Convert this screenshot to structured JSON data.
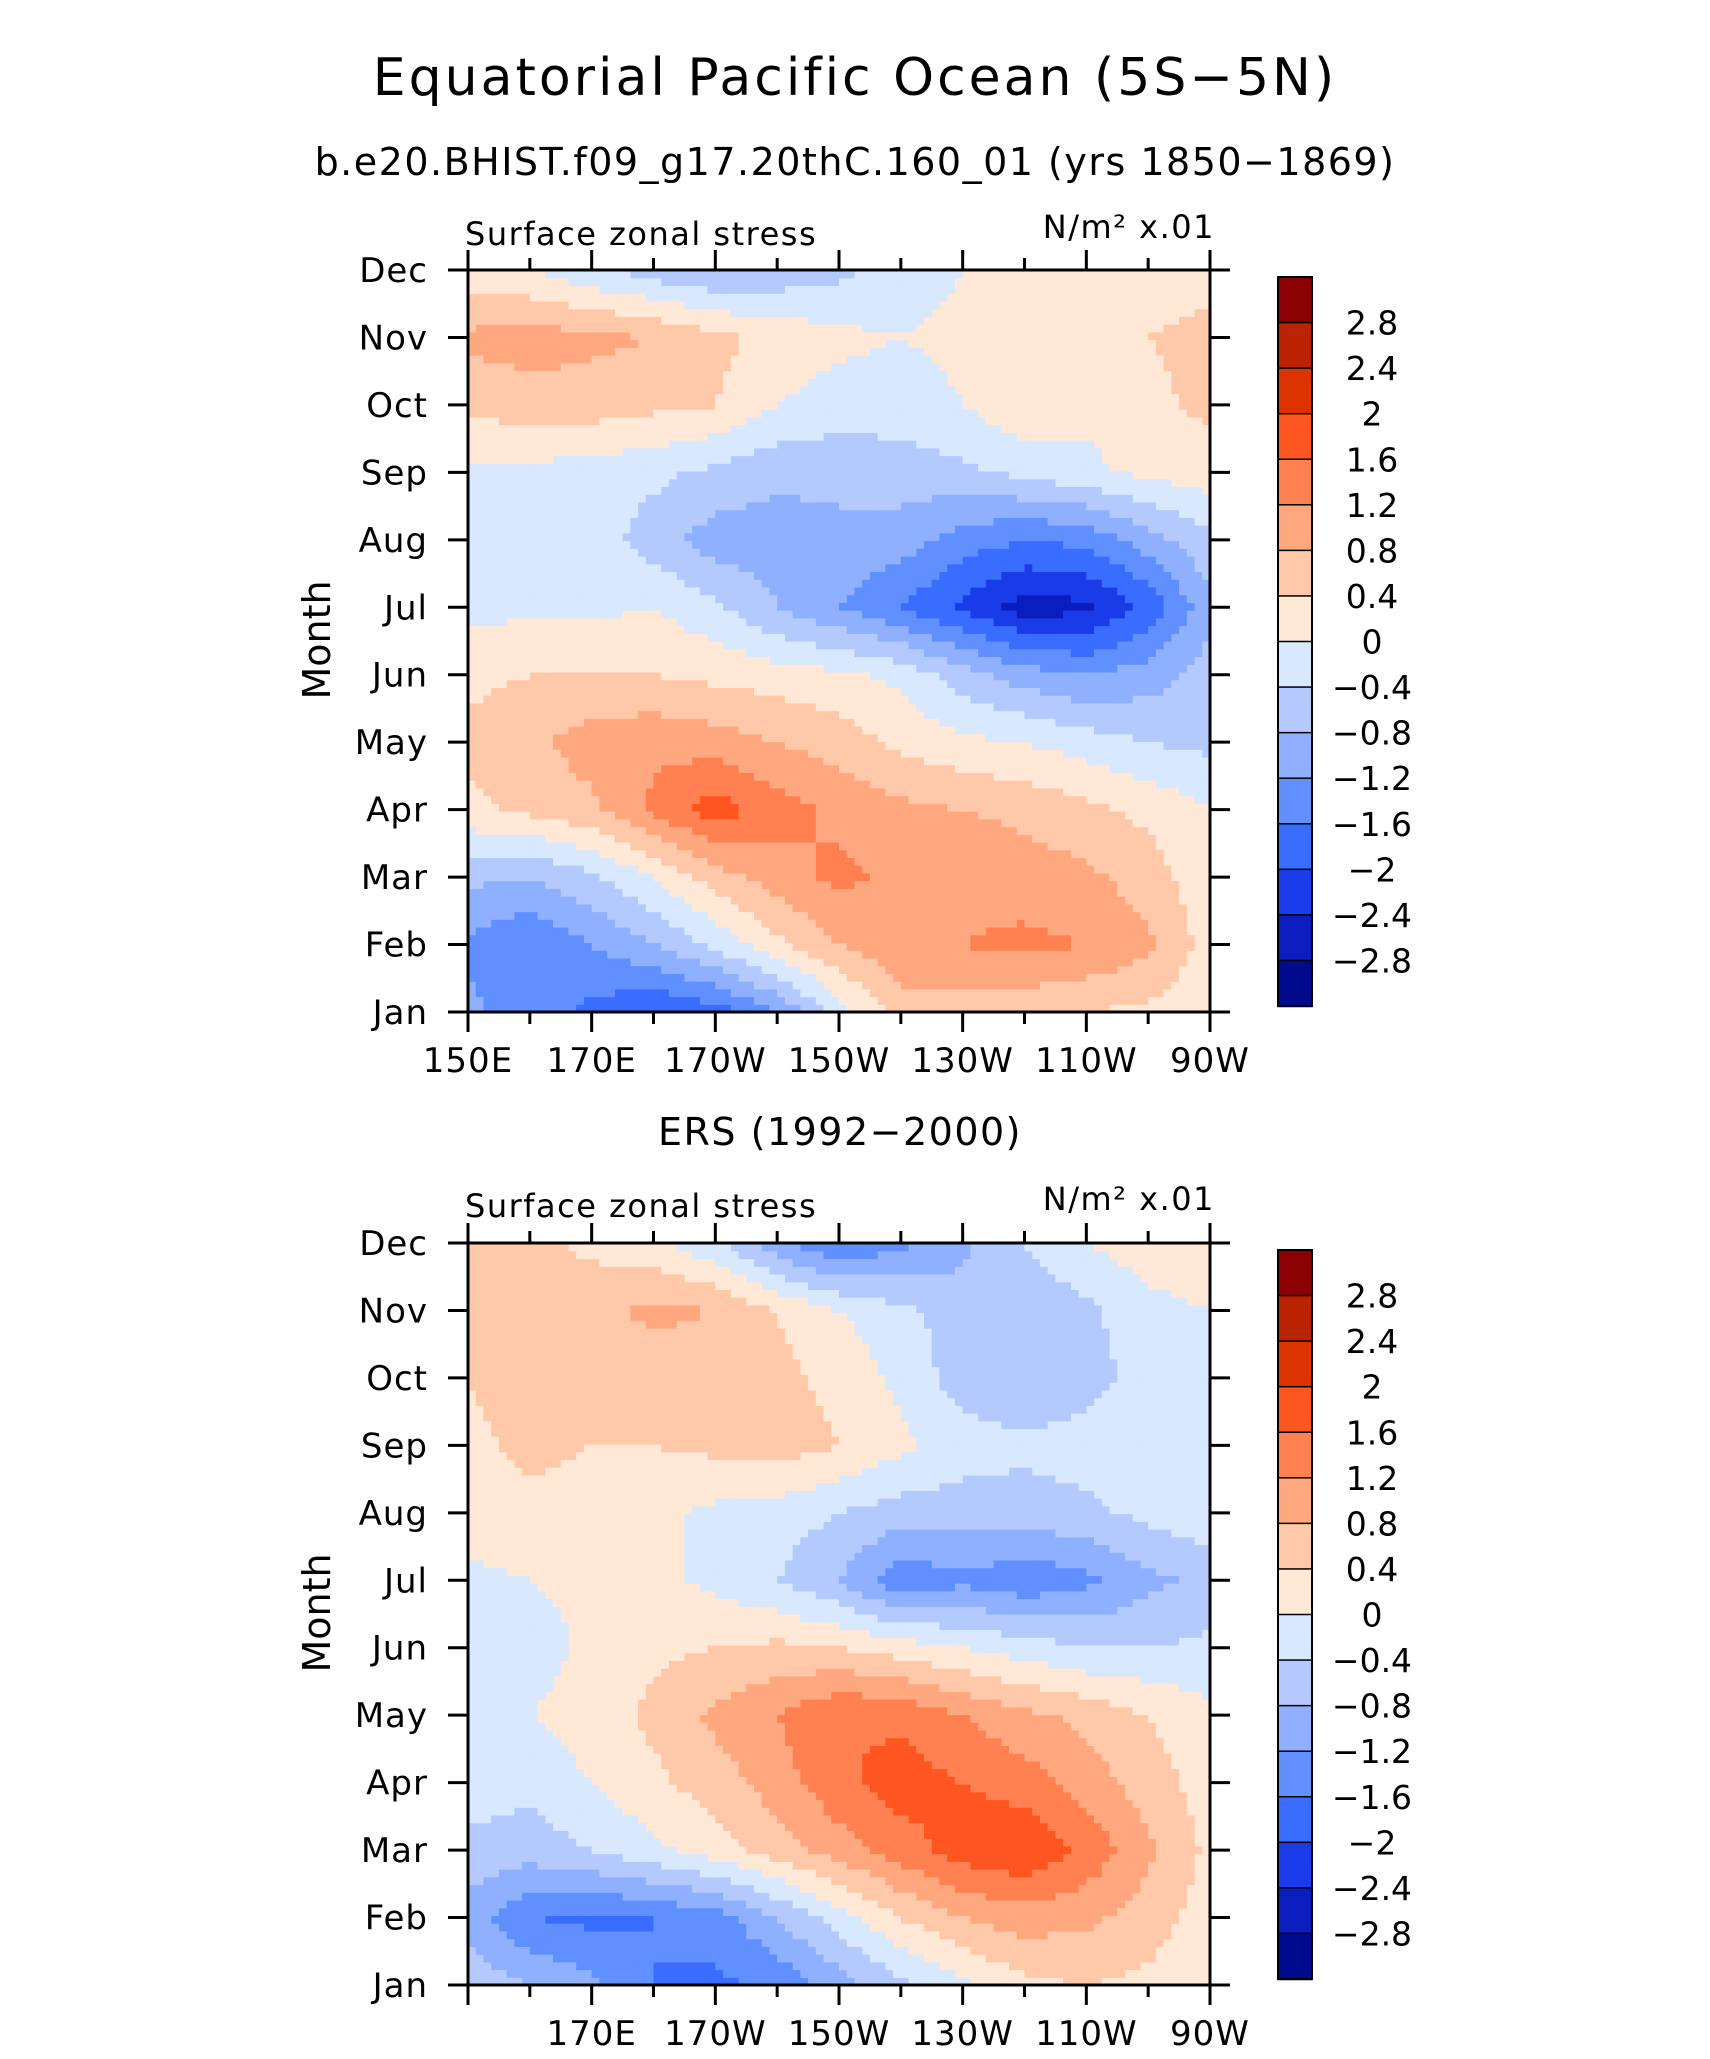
{
  "figure": {
    "title": "Equatorial Pacific Ocean (5S−5N)",
    "subtitle": "b.e20.BHIST.f09_g17.20thC.160_01 (yrs 1850−1869)"
  },
  "colorbar": {
    "labels": [
      "2.8",
      "2.4",
      "2",
      "1.6",
      "1.2",
      "0.8",
      "0.4",
      "0",
      "−0.4",
      "−0.8",
      "−1.2",
      "−1.6",
      "−2",
      "−2.4",
      "−2.8"
    ],
    "colors": [
      "#8b0000",
      "#bb2200",
      "#dd3300",
      "#ff5520",
      "#ff8050",
      "#ffa880",
      "#ffc8a8",
      "#ffe8d6",
      "#d7e8ff",
      "#b4caff",
      "#8eb0ff",
      "#6090ff",
      "#3a6cff",
      "#1a3ce8",
      "#0a1ec0",
      "#000a8c"
    ]
  },
  "chart_data": [
    {
      "type": "heatmap",
      "panel_title": "",
      "left_label": "Surface zonal stress",
      "right_label": "N/m² x.01",
      "ylabel": "Month",
      "xlabel": "",
      "x_ticks": [
        "150E",
        "170E",
        "170W",
        "150W",
        "130W",
        "110W",
        "90W"
      ],
      "y_ticks": [
        "Jan",
        "Feb",
        "Mar",
        "Apr",
        "May",
        "Jun",
        "Jul",
        "Aug",
        "Sep",
        "Oct",
        "Nov",
        "Dec"
      ],
      "x": [
        150,
        160,
        170,
        180,
        190,
        200,
        210,
        220,
        230,
        240,
        250,
        260,
        270
      ],
      "y": [
        "Jan",
        "Feb",
        "Mar",
        "Apr",
        "May",
        "Jun",
        "Jul",
        "Aug",
        "Sep",
        "Oct",
        "Nov",
        "Dec"
      ],
      "z_units": "N/m² x.01",
      "z": [
        [
          -1.1,
          -1.4,
          -1.7,
          -2.0,
          -1.8,
          -1.2,
          -0.2,
          0.6,
          0.6,
          0.5,
          0.4,
          0.3,
          0.1
        ],
        [
          -1.3,
          -1.6,
          -1.2,
          -0.8,
          -0.3,
          0.3,
          0.8,
          1.1,
          1.2,
          1.3,
          1.2,
          0.9,
          0.2
        ],
        [
          -0.7,
          -0.8,
          -0.5,
          0.0,
          0.6,
          1.0,
          1.3,
          1.1,
          1.1,
          1.0,
          0.9,
          0.6,
          0.1
        ],
        [
          0.3,
          0.5,
          0.7,
          1.3,
          1.8,
          1.4,
          1.1,
          0.9,
          0.8,
          0.7,
          0.5,
          0.3,
          0.0
        ],
        [
          0.5,
          0.7,
          1.0,
          1.1,
          1.0,
          0.8,
          0.6,
          0.3,
          0.1,
          0.0,
          -0.2,
          -0.4,
          -0.5
        ],
        [
          0.3,
          0.4,
          0.4,
          0.4,
          0.3,
          0.2,
          0.1,
          -0.1,
          -0.6,
          -1.0,
          -1.2,
          -1.0,
          -0.6
        ],
        [
          -0.1,
          -0.1,
          -0.1,
          0.0,
          -0.3,
          -0.8,
          -1.2,
          -1.6,
          -2.1,
          -2.6,
          -2.5,
          -1.9,
          -0.9
        ],
        [
          -0.3,
          -0.2,
          -0.2,
          -0.6,
          -1.0,
          -1.0,
          -0.9,
          -1.0,
          -1.4,
          -1.6,
          -1.5,
          -1.0,
          -0.5
        ],
        [
          -0.1,
          -0.1,
          -0.2,
          -0.3,
          -0.5,
          -0.7,
          -0.7,
          -0.6,
          -0.5,
          -0.3,
          -0.1,
          0.1,
          0.2
        ],
        [
          0.5,
          0.6,
          0.6,
          0.5,
          0.4,
          0.0,
          -0.2,
          -0.2,
          0.0,
          0.3,
          0.1,
          0.3,
          0.5
        ],
        [
          0.9,
          1.0,
          0.9,
          0.8,
          0.5,
          0.3,
          0.1,
          0.0,
          0.1,
          0.2,
          0.2,
          0.4,
          0.5
        ],
        [
          0.1,
          0.0,
          -0.3,
          -0.6,
          -0.8,
          -0.7,
          -0.5,
          -0.2,
          0.0,
          0.0,
          0.1,
          0.2,
          0.3
        ]
      ]
    },
    {
      "type": "heatmap",
      "panel_title": "ERS (1992−2000)",
      "left_label": "Surface zonal stress",
      "right_label": "N/m² x.01",
      "ylabel": "Month",
      "xlabel": "",
      "x_ticks": [
        "170E",
        "170W",
        "150W",
        "130W",
        "110W",
        "90W"
      ],
      "y_ticks": [
        "Jan",
        "Feb",
        "Mar",
        "Apr",
        "May",
        "Jun",
        "Jul",
        "Aug",
        "Sep",
        "Oct",
        "Nov",
        "Dec"
      ],
      "x": [
        150,
        160,
        170,
        180,
        190,
        200,
        210,
        220,
        230,
        240,
        250,
        260,
        270
      ],
      "y": [
        "Jan",
        "Feb",
        "Mar",
        "Apr",
        "May",
        "Jun",
        "Jul",
        "Aug",
        "Sep",
        "Oct",
        "Nov",
        "Dec"
      ],
      "z_units": "N/m² x.01",
      "z": [
        [
          -0.5,
          -0.8,
          -1.1,
          -1.6,
          -1.7,
          -1.5,
          -1.0,
          -0.5,
          -0.1,
          0.3,
          0.4,
          0.3,
          0.1
        ],
        [
          -1.0,
          -1.6,
          -1.7,
          -1.6,
          -1.4,
          -0.8,
          -0.2,
          0.4,
          0.8,
          1.0,
          0.9,
          0.6,
          0.2
        ],
        [
          -0.5,
          -0.6,
          -0.4,
          -0.1,
          0.2,
          0.6,
          1.0,
          1.4,
          1.8,
          2.0,
          1.5,
          0.9,
          0.3
        ],
        [
          -0.2,
          -0.3,
          0.0,
          0.3,
          0.6,
          1.0,
          1.5,
          1.8,
          1.6,
          1.4,
          1.0,
          0.6,
          0.2
        ],
        [
          -0.1,
          0.0,
          0.2,
          0.5,
          0.9,
          1.2,
          1.6,
          1.5,
          1.2,
          0.9,
          0.7,
          0.4,
          0.1
        ],
        [
          -0.3,
          -0.2,
          0.1,
          0.3,
          0.4,
          0.5,
          0.4,
          0.2,
          0.0,
          -0.2,
          -0.4,
          -0.4,
          -0.3
        ],
        [
          -0.1,
          0.0,
          0.1,
          0.1,
          -0.1,
          -0.4,
          -0.8,
          -1.5,
          -1.3,
          -1.5,
          -1.3,
          -0.9,
          -0.7
        ],
        [
          0.2,
          0.3,
          0.2,
          0.1,
          -0.1,
          -0.2,
          -0.4,
          -0.6,
          -0.6,
          -0.6,
          -0.5,
          -0.3,
          -0.1
        ],
        [
          0.3,
          0.5,
          0.4,
          0.4,
          0.5,
          0.6,
          0.4,
          0.1,
          -0.2,
          -0.3,
          -0.2,
          0.0,
          0.0
        ],
        [
          0.4,
          0.6,
          0.6,
          0.5,
          0.6,
          0.5,
          0.3,
          -0.1,
          -0.6,
          -0.8,
          -0.6,
          -0.2,
          0.0
        ],
        [
          0.5,
          0.6,
          0.7,
          0.9,
          0.8,
          0.4,
          0.0,
          -0.3,
          -0.6,
          -0.7,
          -0.5,
          -0.1,
          0.0
        ],
        [
          0.4,
          0.5,
          0.3,
          0.1,
          -0.3,
          -1.1,
          -1.6,
          -1.3,
          -0.9,
          -0.4,
          0.0,
          0.2,
          0.2
        ]
      ]
    }
  ]
}
